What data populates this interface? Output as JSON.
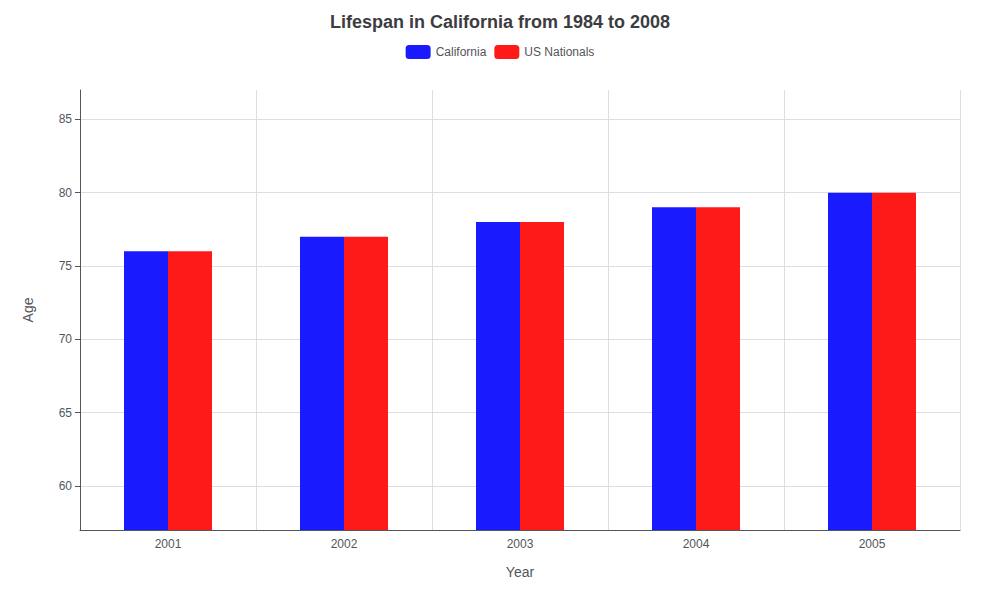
{
  "chart_data": {
    "type": "bar",
    "title": "Lifespan in California from 1984 to 2008",
    "xlabel": "Year",
    "ylabel": "Age",
    "categories": [
      "2001",
      "2002",
      "2003",
      "2004",
      "2005"
    ],
    "series": [
      {
        "name": "California",
        "color": "#1a1aff",
        "values": [
          76,
          77,
          78,
          79,
          80
        ]
      },
      {
        "name": "US Nationals",
        "color": "#ff1a1a",
        "values": [
          76,
          77,
          78,
          79,
          80
        ]
      }
    ],
    "ylim": [
      57,
      87
    ],
    "yticks": [
      60,
      65,
      70,
      75,
      80,
      85
    ],
    "grid": true,
    "legend": "upper center"
  }
}
